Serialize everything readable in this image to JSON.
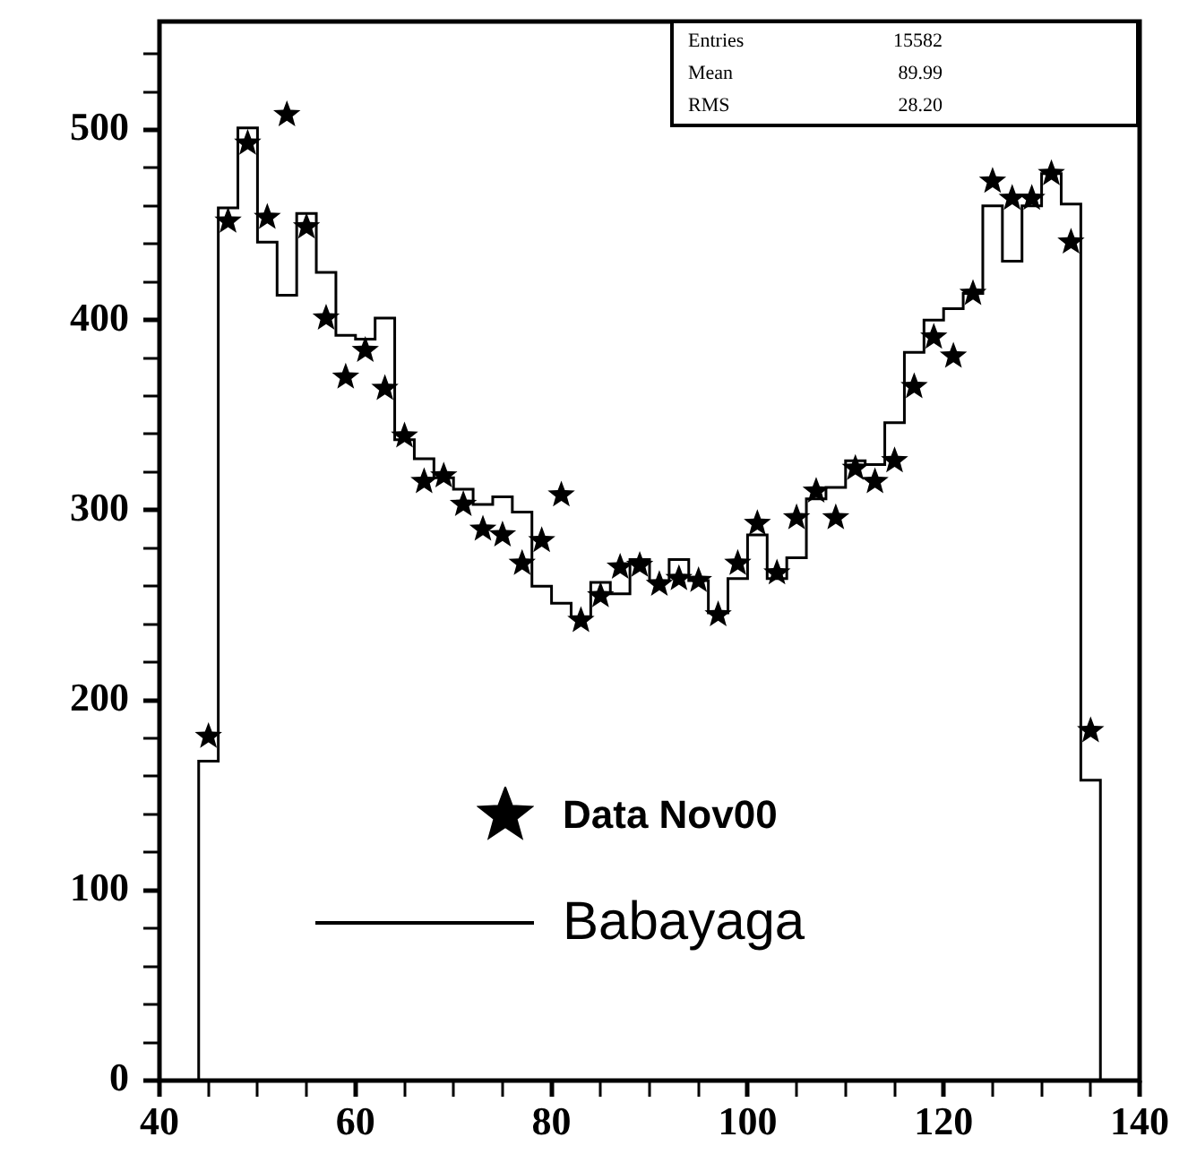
{
  "chart_data": {
    "type": "histogram",
    "bins": [
      44,
      46,
      48,
      50,
      52,
      54,
      56,
      58,
      60,
      62,
      64,
      66,
      68,
      70,
      72,
      74,
      76,
      78,
      80,
      82,
      84,
      86,
      88,
      90,
      92,
      94,
      96,
      98,
      100,
      102,
      104,
      106,
      108,
      110,
      112,
      114,
      116,
      118,
      120,
      122,
      124,
      126,
      128,
      130,
      132,
      134,
      136
    ],
    "series": [
      {
        "name": "Data Nov00",
        "type": "scatter",
        "color": "#000000",
        "x": [
          45,
          47,
          49,
          51,
          53,
          55,
          57,
          59,
          61,
          63,
          65,
          67,
          69,
          71,
          73,
          75,
          77,
          79,
          81,
          83,
          85,
          87,
          89,
          91,
          93,
          95,
          97,
          99,
          101,
          103,
          105,
          107,
          109,
          111,
          113,
          115,
          117,
          119,
          121,
          123,
          125,
          127,
          129,
          131,
          133,
          135
        ],
        "values": [
          181,
          452,
          493,
          454,
          508,
          449,
          401,
          370,
          384,
          364,
          339,
          315,
          318,
          303,
          290,
          287,
          272,
          284,
          308,
          242,
          255,
          270,
          271,
          261,
          264,
          263,
          245,
          272,
          293,
          267,
          296,
          310,
          296,
          322,
          315,
          326,
          365,
          391,
          381,
          414,
          473,
          464,
          464,
          477,
          441,
          184
        ]
      },
      {
        "name": "Babayaga",
        "type": "histogram",
        "color": "#000000",
        "values": [
          168,
          459,
          501,
          441,
          413,
          456,
          425,
          392,
          390,
          401,
          337,
          327,
          317,
          311,
          303,
          307,
          299,
          260,
          251,
          244,
          262,
          256,
          274,
          263,
          274,
          263,
          246,
          264,
          287,
          264,
          275,
          306,
          312,
          326,
          324,
          346,
          383,
          400,
          406,
          414,
          460,
          431,
          460,
          477,
          461,
          158
        ]
      }
    ],
    "marker": "star",
    "legend": "bottom",
    "annotations": [
      "Entries",
      "15582",
      "Mean",
      "89.99",
      "RMS",
      "28.20"
    ],
    "xlim": [
      40,
      140
    ],
    "xticks": [
      40,
      {
        "value": 45,
        "label": null
      },
      {
        "value": 50,
        "label": null
      },
      {
        "value": 55,
        "label": null
      },
      60,
      {
        "value": 65,
        "label": null
      },
      {
        "value": 70,
        "label": null
      },
      {
        "value": 75,
        "label": null
      },
      80,
      {
        "value": 85,
        "label": null
      },
      {
        "value": 90,
        "label": null
      },
      {
        "value": 95,
        "label": null
      },
      100,
      {
        "value": 105,
        "label": null
      },
      {
        "value": 110,
        "label": null
      },
      {
        "value": 115,
        "label": null
      },
      120,
      {
        "value": 125,
        "label": null
      },
      {
        "value": 130,
        "label": null
      },
      {
        "value": 135,
        "label": null
      },
      140
    ],
    "ylim": [
      0,
      557
    ],
    "yticks": [
      0,
      {
        "value": 20,
        "label": null
      },
      {
        "value": 40,
        "label": null
      },
      {
        "value": 60,
        "label": null
      },
      {
        "value": 80,
        "label": null
      },
      100,
      {
        "value": 120,
        "label": null
      },
      {
        "value": 140,
        "label": null
      },
      {
        "value": 160,
        "label": null
      },
      {
        "value": 180,
        "label": null
      },
      200,
      {
        "value": 220,
        "label": null
      },
      {
        "value": 240,
        "label": null
      },
      {
        "value": 260,
        "label": null
      },
      {
        "value": 280,
        "label": null
      },
      300,
      {
        "value": 320,
        "label": null
      },
      {
        "value": 340,
        "label": null
      },
      {
        "value": 360,
        "label": null
      },
      {
        "value": 380,
        "label": null
      },
      400,
      {
        "value": 420,
        "label": null
      },
      {
        "value": 440,
        "label": null
      },
      {
        "value": 460,
        "label": null
      },
      {
        "value": 480,
        "label": null
      },
      500,
      {
        "value": 520,
        "label": null
      },
      {
        "value": 540,
        "label": null
      }
    ]
  }
}
